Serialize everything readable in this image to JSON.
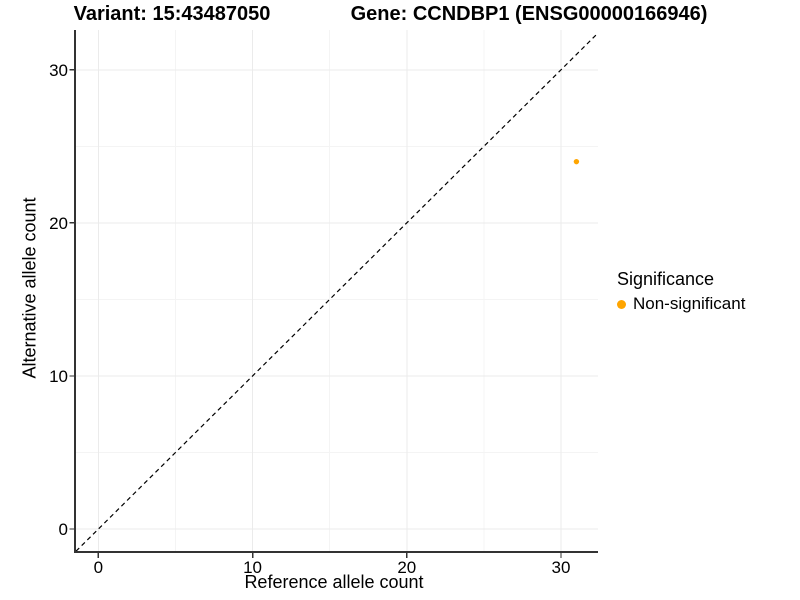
{
  "chart_data": {
    "type": "scatter",
    "title_left": "Variant: 15:43487050",
    "title_right": "Gene: CCNDBP1 (ENSG00000166946)",
    "xlabel": "Reference allele count",
    "ylabel": "Alternative allele count",
    "xlim": [
      -1.45,
      32.4
    ],
    "ylim": [
      -1.5,
      32.6
    ],
    "x_ticks": [
      0,
      10,
      20,
      30
    ],
    "y_ticks": [
      0,
      10,
      20,
      30
    ],
    "x_minor_gridlines": [
      5,
      15,
      25
    ],
    "y_minor_gridlines": [
      5,
      15,
      25
    ],
    "grid": "on",
    "points": [
      {
        "x": 31,
        "y": 24,
        "group": "Non-significant"
      }
    ],
    "identity_line": {
      "slope": 1,
      "intercept": 0,
      "style": "dashed",
      "color": "#000000"
    },
    "legend": {
      "title": "Significance",
      "position": "right",
      "items": [
        {
          "label": "Non-significant",
          "color": "#FFA500"
        }
      ]
    }
  }
}
